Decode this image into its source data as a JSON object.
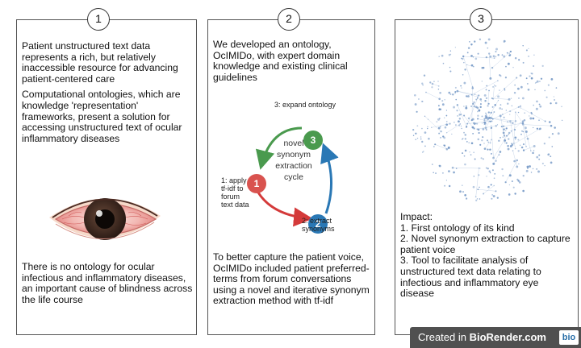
{
  "panels": [
    {
      "number": "1",
      "paragraphs": [
        "Patient unstructured text data represents a rich, but relatively inaccessible resource for advancing patient-centered care",
        "Computational ontologies, which are knowledge 'representation' frameworks, present a solution for accessing unstructured text of ocular inflammatory diseases"
      ],
      "bottom_text": "There is no ontology for ocular infectious and inflammatory diseases, an important cause of blindness across the life course"
    },
    {
      "number": "2",
      "top_text": "We developed an ontology, OcIMIDo, with expert domain knowledge and existing clinical guidelines",
      "cycle": {
        "center": [
          "novel",
          "synonym",
          "extraction",
          "cycle"
        ],
        "steps": [
          {
            "number": "1",
            "label": [
              "1: apply",
              "tf-idf to",
              "forum",
              "text data"
            ],
            "color": "#d9534f"
          },
          {
            "number": "2",
            "label": [
              "2: extract",
              "synonyms"
            ],
            "color": "#2a78b5"
          },
          {
            "number": "3",
            "label": [
              "3: expand ontology"
            ],
            "color": "#4a9a4e"
          }
        ],
        "arrow_colors": {
          "red": "#d43a3a",
          "blue": "#2a78b5",
          "green": "#4a9a4e"
        }
      },
      "bottom_text": "To better capture the patient voice, OcIMIDo included patient preferred-terms from forum conversations using a novel and iterative synonym extraction method with tf-idf"
    },
    {
      "number": "3",
      "network_color": "#7a9cc8",
      "impact_lines": [
        "Impact:",
        "1. First ontology of its kind",
        "2. Novel synonym extraction to capture patient voice",
        "3. Tool to facilitate analysis of unstructured text data relating to infectious and inflammatory eye disease"
      ]
    }
  ],
  "badge": {
    "prefix": "Created in ",
    "brand": "BioRender.com",
    "logo": "bio"
  }
}
